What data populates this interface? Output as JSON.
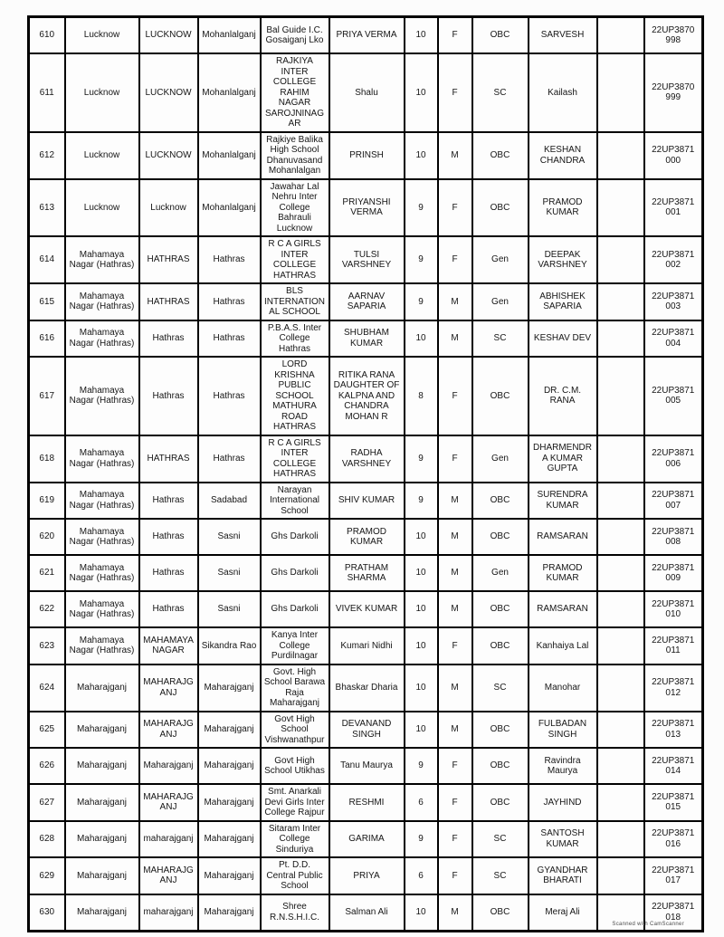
{
  "page": {
    "background_color": "#fcfcfc",
    "text_color": "#161616",
    "border_color": "#000000"
  },
  "table": {
    "column_keys": [
      "sno",
      "district",
      "district_upper",
      "block",
      "school",
      "student_name",
      "class",
      "gender",
      "category",
      "father_name",
      "blank",
      "registration_no"
    ],
    "rows": [
      [
        "610",
        "Lucknow",
        "LUCKNOW",
        "Mohanlalganj",
        "Bal Guide I.C. Gosaiganj Lko",
        "PRIYA VERMA",
        "10",
        "F",
        "OBC",
        "SARVESH",
        "",
        "22UP3870998"
      ],
      [
        "611",
        "Lucknow",
        "LUCKNOW",
        "Mohanlalganj",
        "RAJKIYA INTER COLLEGE RAHIM NAGAR SAROJNINAGAR",
        "Shalu",
        "10",
        "F",
        "SC",
        "Kailash",
        "",
        "22UP3870999"
      ],
      [
        "612",
        "Lucknow",
        "LUCKNOW",
        "Mohanlalganj",
        "Rajkiye Balika High School Dhanuvasand Mohanlalgan",
        "PRINSH",
        "10",
        "M",
        "OBC",
        "KESHAN CHANDRA",
        "",
        "22UP3871000"
      ],
      [
        "613",
        "Lucknow",
        "Lucknow",
        "Mohanlalganj",
        "Jawahar Lal Nehru Inter College Bahrauli Lucknow",
        "PRIYANSHI VERMA",
        "9",
        "F",
        "OBC",
        "PRAMOD KUMAR",
        "",
        "22UP3871001"
      ],
      [
        "614",
        "Mahamaya Nagar (Hathras)",
        "HATHRAS",
        "Hathras",
        "R C A GIRLS INTER COLLEGE HATHRAS",
        "TULSI VARSHNEY",
        "9",
        "F",
        "Gen",
        "DEEPAK VARSHNEY",
        "",
        "22UP3871002"
      ],
      [
        "615",
        "Mahamaya Nagar (Hathras)",
        "HATHRAS",
        "Hathras",
        "BLS INTERNATIONAL SCHOOL",
        "AARNAV SAPARIA",
        "9",
        "M",
        "Gen",
        "ABHISHEK SAPARIA",
        "",
        "22UP3871003"
      ],
      [
        "616",
        "Mahamaya Nagar (Hathras)",
        "Hathras",
        "Hathras",
        "P.B.A.S. Inter College Hathras",
        "SHUBHAM KUMAR",
        "10",
        "M",
        "SC",
        "KESHAV DEV",
        "",
        "22UP3871004"
      ],
      [
        "617",
        "Mahamaya Nagar (Hathras)",
        "Hathras",
        "Hathras",
        "LORD KRISHNA PUBLIC SCHOOL MATHURA ROAD HATHRAS",
        "RITIKA RANA DAUGHTER OF KALPNA AND CHANDRA MOHAN R",
        "8",
        "F",
        "OBC",
        "DR. C.M. RANA",
        "",
        "22UP3871005"
      ],
      [
        "618",
        "Mahamaya Nagar (Hathras)",
        "HATHRAS",
        "Hathras",
        "R C A GIRLS INTER COLLEGE HATHRAS",
        "RADHA VARSHNEY",
        "9",
        "F",
        "Gen",
        "DHARMENDRA KUMAR GUPTA",
        "",
        "22UP3871006"
      ],
      [
        "619",
        "Mahamaya Nagar (Hathras)",
        "Hathras",
        "Sadabad",
        "Narayan International School",
        "SHIV KUMAR",
        "9",
        "M",
        "OBC",
        "SURENDRA KUMAR",
        "",
        "22UP3871007"
      ],
      [
        "620",
        "Mahamaya Nagar (Hathras)",
        "Hathras",
        "Sasni",
        "Ghs Darkoli",
        "PRAMOD KUMAR",
        "10",
        "M",
        "OBC",
        "RAMSARAN",
        "",
        "22UP3871008"
      ],
      [
        "621",
        "Mahamaya Nagar (Hathras)",
        "Hathras",
        "Sasni",
        "Ghs Darkoli",
        "PRATHAM SHARMA",
        "10",
        "M",
        "Gen",
        "PRAMOD KUMAR",
        "",
        "22UP3871009"
      ],
      [
        "622",
        "Mahamaya Nagar (Hathras)",
        "Hathras",
        "Sasni",
        "Ghs Darkoli",
        "VIVEK KUMAR",
        "10",
        "M",
        "OBC",
        "RAMSARAN",
        "",
        "22UP3871010"
      ],
      [
        "623",
        "Mahamaya Nagar (Hathras)",
        "MAHAMAYA NAGAR",
        "Sikandra Rao",
        "Kanya Inter College Purdilnagar",
        "Kumari Nidhi",
        "10",
        "F",
        "OBC",
        "Kanhaiya Lal",
        "",
        "22UP3871011"
      ],
      [
        "624",
        "Maharajganj",
        "MAHARAJGANJ",
        "Maharajganj",
        "Govt. High School Barawa Raja Maharajganj",
        "Bhaskar Dharia",
        "10",
        "M",
        "SC",
        "Manohar",
        "",
        "22UP3871012"
      ],
      [
        "625",
        "Maharajganj",
        "MAHARAJGANJ",
        "Maharajganj",
        "Govt High School Vishwanathpur",
        "DEVANAND SINGH",
        "10",
        "M",
        "OBC",
        "FULBADAN SINGH",
        "",
        "22UP3871013"
      ],
      [
        "626",
        "Maharajganj",
        "Maharajganj",
        "Maharajganj",
        "Govt High School Utikhas",
        "Tanu Maurya",
        "9",
        "F",
        "OBC",
        "Ravindra Maurya",
        "",
        "22UP3871014"
      ],
      [
        "627",
        "Maharajganj",
        "MAHARAJGANJ",
        "Maharajganj",
        "Smt. Anarkali Devi Girls Inter College Rajpur",
        "RESHMI",
        "6",
        "F",
        "OBC",
        "JAYHIND",
        "",
        "22UP3871015"
      ],
      [
        "628",
        "Maharajganj",
        "maharajganj",
        "Maharajganj",
        "Sitaram Inter College Sinduriya",
        "GARIMA",
        "9",
        "F",
        "SC",
        "SANTOSH KUMAR",
        "",
        "22UP3871016"
      ],
      [
        "629",
        "Maharajganj",
        "MAHARAJGANJ",
        "Maharajganj",
        "Pt. D.D. Central Public School",
        "PRIYA",
        "6",
        "F",
        "SC",
        "GYANDHAR BHARATI",
        "",
        "22UP3871017"
      ],
      [
        "630",
        "Maharajganj",
        "maharajganj",
        "Maharajganj",
        "Shree R.N.S.H.I.C.",
        "Salman Ali",
        "10",
        "M",
        "OBC",
        "Meraj Ali",
        "",
        "22UP3871018"
      ]
    ]
  },
  "footer": {
    "watermark": "Scanned with CamScanner"
  }
}
